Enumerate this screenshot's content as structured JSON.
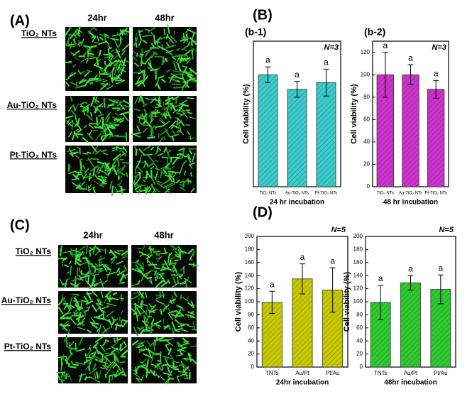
{
  "panel_a": {
    "label": "(A)",
    "columns": [
      "24hr",
      "48hr"
    ],
    "rows": [
      "TiO₂ NTs",
      "Au-TiO₂ NTs",
      "Pt-TiO₂ NTs"
    ]
  },
  "panel_b": {
    "label": "(B)"
  },
  "panel_c": {
    "label": "(C)",
    "columns": [
      "24hr",
      "48hr"
    ],
    "rows": [
      "TiO₂ NTs",
      "Au-TiO₂ NTs",
      "Pt-TiO₂ NTs"
    ]
  },
  "panel_d": {
    "label": "(D)"
  },
  "chart_data": [
    {
      "type": "bar",
      "title": "(b-1)",
      "note": "N=3",
      "xlabel": "24 hr incubation",
      "ylabel": "Cell viability (%)",
      "categories": [
        "TiO₂ NTs",
        "Au-TiO₂ NTs",
        "Pt-TiO₂ NTs"
      ],
      "values": [
        100,
        87,
        93
      ],
      "errors": [
        7,
        7,
        12
      ],
      "bar_labels": [
        "a",
        "a",
        "a"
      ],
      "color": "#3ccaca",
      "ylim": [
        0,
        130
      ]
    },
    {
      "type": "bar",
      "title": "(b-2)",
      "note": "N=3",
      "xlabel": "48 hr incubation",
      "ylabel": "Cell viability (%)",
      "categories": [
        "TiO₂ NTs",
        "Au-TiO₂ NTs",
        "Pt-TiO₂ NTs"
      ],
      "values": [
        100,
        100,
        87
      ],
      "errors": [
        20,
        9,
        8
      ],
      "bar_labels": [
        "a",
        "a",
        "a"
      ],
      "color": "#cc33cc",
      "ylim": [
        0,
        130
      ],
      "yticks": [
        0,
        20,
        40,
        60,
        80,
        100,
        120
      ]
    },
    {
      "type": "bar",
      "note": "N=5",
      "xlabel": "24hr incubation",
      "ylabel": "Cell viability (%)",
      "categories": [
        "TNTs",
        "Au/Pt",
        "Pt/Au"
      ],
      "values": [
        99,
        135,
        118
      ],
      "errors": [
        17,
        23,
        34
      ],
      "bar_labels": [
        "a",
        "a",
        "a"
      ],
      "color": "#c8c800",
      "ylim": [
        0,
        200
      ],
      "yticks": [
        0,
        20,
        40,
        60,
        80,
        100,
        120,
        140,
        160,
        180,
        200
      ]
    },
    {
      "type": "bar",
      "note": "N=5",
      "xlabel": "48hr incubation",
      "ylabel": "Cell viability (%)",
      "categories": [
        "TNTs",
        "Au/Pt",
        "Pt/Au"
      ],
      "values": [
        99,
        129,
        119
      ],
      "errors": [
        26,
        11,
        22
      ],
      "bar_labels": [
        "a",
        "a",
        "a"
      ],
      "color": "#2fc82f",
      "ylim": [
        0,
        200
      ],
      "yticks": [
        0,
        20,
        40,
        60,
        80,
        100,
        120,
        140,
        160,
        180,
        200
      ]
    }
  ]
}
